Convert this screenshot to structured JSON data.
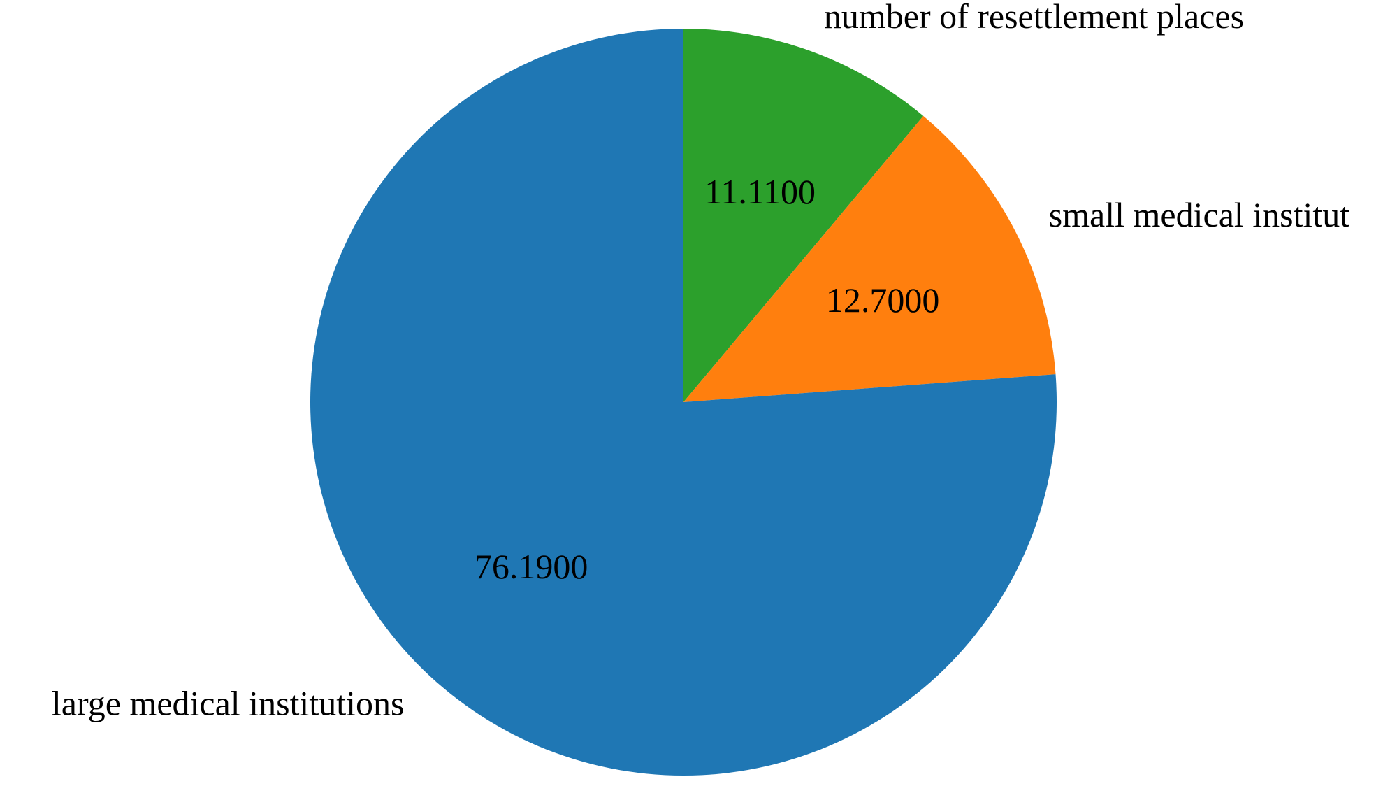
{
  "chart_data": {
    "type": "pie",
    "slices": [
      {
        "label": "number of resettlement places",
        "value": 11.11,
        "value_text": "11.1100",
        "color": "#2ca02c"
      },
      {
        "label": "small medical institut",
        "value": 12.7,
        "value_text": "12.7000",
        "color": "#ff7f0e"
      },
      {
        "label": "large medical institutions",
        "value": 76.19,
        "value_text": "76.1900",
        "color": "#1f77b4"
      }
    ],
    "start": "top",
    "direction": "clockwise",
    "title": "",
    "legend": "none"
  }
}
